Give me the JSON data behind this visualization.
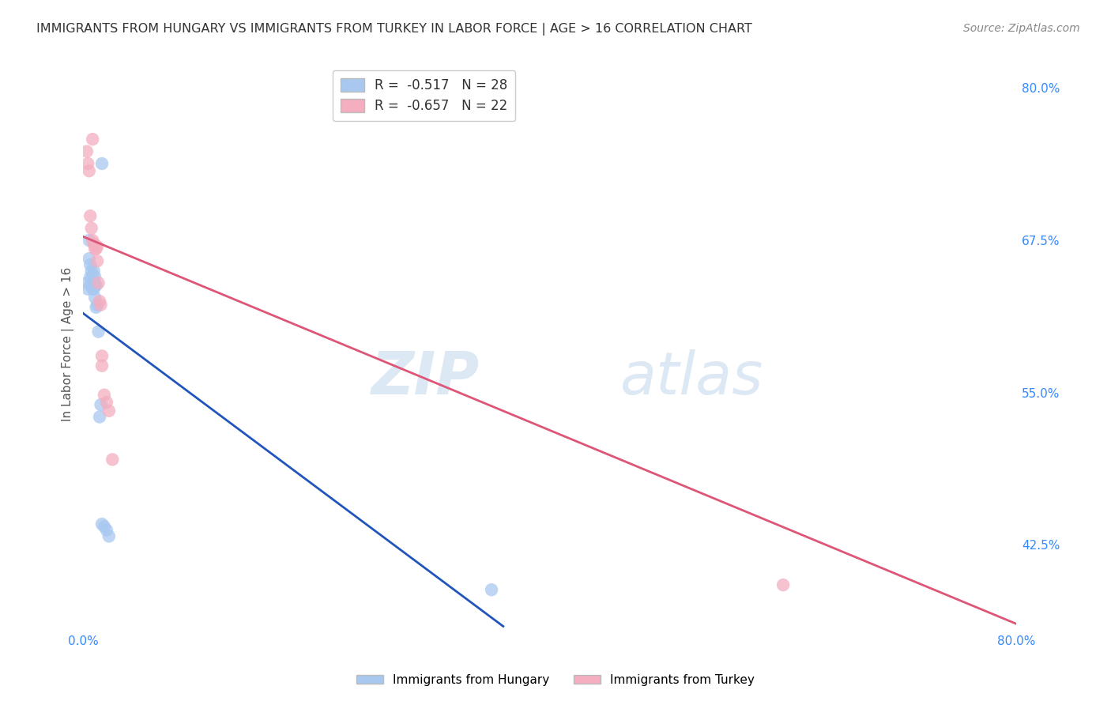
{
  "title": "IMMIGRANTS FROM HUNGARY VS IMMIGRANTS FROM TURKEY IN LABOR FORCE | AGE > 16 CORRELATION CHART",
  "source": "Source: ZipAtlas.com",
  "ylabel": "In Labor Force | Age > 16",
  "xlim": [
    0.0,
    0.8
  ],
  "ylim": [
    0.355,
    0.825
  ],
  "hungary_x": [
    0.003,
    0.004,
    0.005,
    0.005,
    0.006,
    0.006,
    0.007,
    0.007,
    0.008,
    0.008,
    0.009,
    0.009,
    0.009,
    0.01,
    0.01,
    0.01,
    0.011,
    0.011,
    0.012,
    0.013,
    0.014,
    0.015,
    0.016,
    0.018,
    0.02,
    0.022,
    0.35,
    0.016
  ],
  "hungary_y": [
    0.64,
    0.635,
    0.675,
    0.66,
    0.655,
    0.645,
    0.65,
    0.64,
    0.645,
    0.635,
    0.65,
    0.64,
    0.635,
    0.645,
    0.638,
    0.628,
    0.638,
    0.62,
    0.622,
    0.6,
    0.53,
    0.54,
    0.442,
    0.44,
    0.437,
    0.432,
    0.388,
    0.738
  ],
  "turkey_x": [
    0.003,
    0.004,
    0.005,
    0.006,
    0.007,
    0.008,
    0.009,
    0.01,
    0.011,
    0.012,
    0.013,
    0.015,
    0.016,
    0.018,
    0.02,
    0.022,
    0.025,
    0.6,
    0.008,
    0.012,
    0.014,
    0.016
  ],
  "turkey_y": [
    0.748,
    0.738,
    0.732,
    0.695,
    0.685,
    0.675,
    0.672,
    0.668,
    0.668,
    0.658,
    0.64,
    0.622,
    0.58,
    0.548,
    0.542,
    0.535,
    0.495,
    0.392,
    0.758,
    0.67,
    0.625,
    0.572
  ],
  "hungary_R": -0.517,
  "hungary_N": 28,
  "turkey_R": -0.657,
  "turkey_N": 22,
  "hungary_dot_color": "#a8c8f0",
  "turkey_dot_color": "#f4aec0",
  "hungary_line_color": "#2255bb",
  "turkey_line_color": "#dd5577",
  "hungary_line_x0": 0.0,
  "hungary_line_y0": 0.615,
  "hungary_line_x1": 0.36,
  "hungary_line_y1": 0.358,
  "turkey_line_x0": 0.0,
  "turkey_line_y0": 0.678,
  "turkey_line_x1": 0.8,
  "turkey_line_y1": 0.36,
  "grid_color": "#cccccc",
  "axis_color": "#3388ff",
  "watermark_color": "#dde8f5",
  "background_color": "#ffffff"
}
